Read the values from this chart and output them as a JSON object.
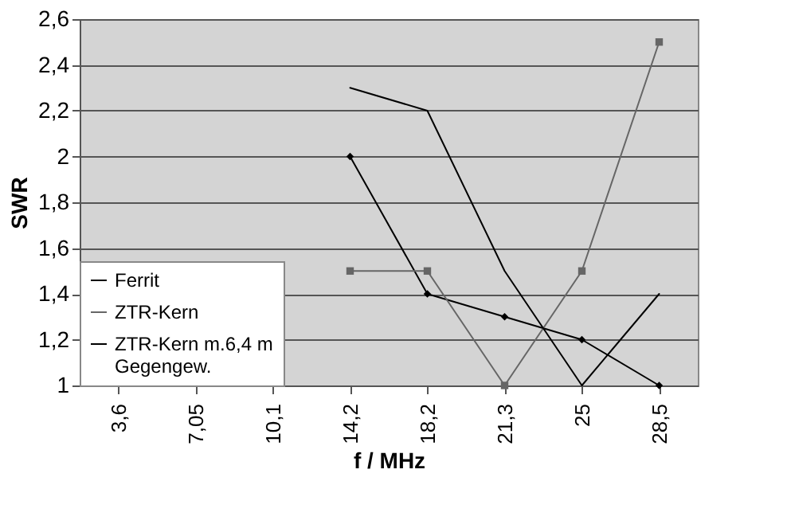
{
  "chart_data": {
    "type": "line",
    "xlabel": "f / MHz",
    "ylabel": "SWR",
    "categories": [
      "3,6",
      "7,05",
      "10,1",
      "14,2",
      "18,2",
      "21,3",
      "25",
      "28,5"
    ],
    "series": [
      {
        "name": "Ferrit",
        "color": "#000000",
        "marker": "diamond",
        "values": [
          null,
          null,
          null,
          2.0,
          1.4,
          1.3,
          1.2,
          1.0
        ]
      },
      {
        "name": "ZTR-Kern",
        "color": "#666666",
        "marker": "square",
        "values": [
          null,
          null,
          null,
          1.5,
          1.5,
          1.0,
          1.5,
          2.5
        ]
      },
      {
        "name": "ZTR-Kern m.6,4 m Gegengew.",
        "color": "#000000",
        "marker": "none",
        "values": [
          null,
          null,
          null,
          2.3,
          2.2,
          1.5,
          1.0,
          1.4
        ]
      }
    ],
    "ylim": [
      1,
      2.6
    ],
    "yticks": [
      {
        "value": 1,
        "label": "1"
      },
      {
        "value": 1.2,
        "label": "1,2"
      },
      {
        "value": 1.4,
        "label": "1,4"
      },
      {
        "value": 1.6,
        "label": "1,6"
      },
      {
        "value": 1.8,
        "label": "1,8"
      },
      {
        "value": 2,
        "label": "2"
      },
      {
        "value": 2.2,
        "label": "2,2"
      },
      {
        "value": 2.4,
        "label": "2,4"
      },
      {
        "value": 2.6,
        "label": "2,6"
      }
    ],
    "grid": "y",
    "legend": "bottom left"
  }
}
